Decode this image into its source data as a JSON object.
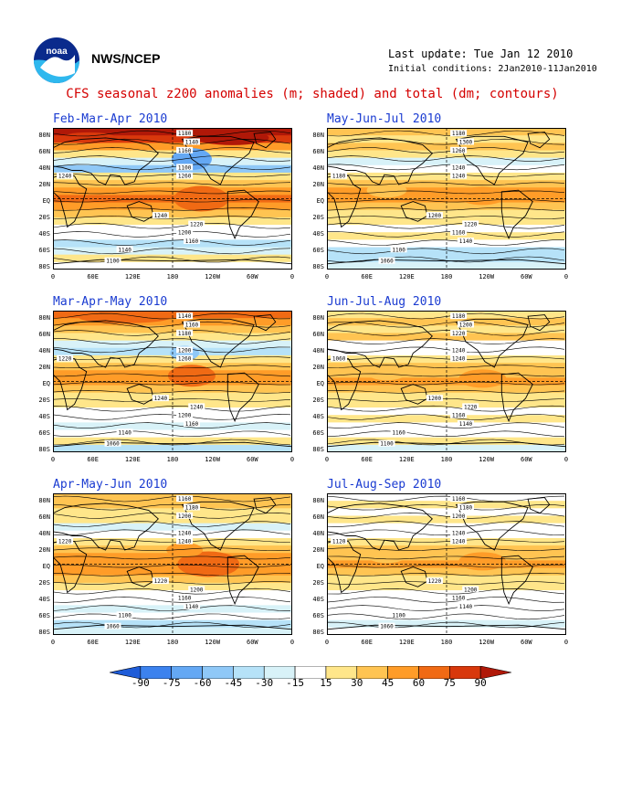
{
  "header": {
    "org": "NWS/NCEP",
    "last_update": "Last update: Tue Jan 12 2010",
    "initial_conditions": "Initial conditions: 2Jan2010-11Jan2010",
    "title": "CFS seasonal z200 anomalies (m; shaded) and total (dm; contours)"
  },
  "axes": {
    "lat_labels": [
      "80N",
      "60N",
      "40N",
      "20N",
      "EQ",
      "20S",
      "40S",
      "60S",
      "80S"
    ],
    "lon_labels": [
      "0",
      "60E",
      "120E",
      "180",
      "120W",
      "60W",
      "0"
    ]
  },
  "panels": [
    {
      "title": "Feb-Mar-Apr 2010",
      "contours": [
        "1180",
        "1140",
        "1160",
        "1100",
        "1260",
        "1240",
        "1220",
        "1200",
        "1160",
        "1140",
        "1100",
        "1240"
      ]
    },
    {
      "title": "May-Jun-Jul 2010",
      "contours": [
        "1180",
        "1300",
        "1260",
        "1240",
        "1240",
        "1200",
        "1220",
        "1160",
        "1140",
        "1100",
        "1060",
        "1180"
      ]
    },
    {
      "title": "Mar-Apr-May 2010",
      "contours": [
        "1140",
        "1160",
        "1180",
        "1200",
        "1260",
        "1240",
        "1240",
        "1200",
        "1160",
        "1140",
        "1060",
        "1220"
      ]
    },
    {
      "title": "Jun-Jul-Aug 2010",
      "contours": [
        "1180",
        "1200",
        "1220",
        "1240",
        "1240",
        "1200",
        "1220",
        "1160",
        "1140",
        "1160",
        "1100",
        "1060"
      ]
    },
    {
      "title": "Apr-May-Jun 2010",
      "contours": [
        "1160",
        "1180",
        "1200",
        "1240",
        "1240",
        "1220",
        "1200",
        "1160",
        "1140",
        "1100",
        "1060",
        "1220"
      ]
    },
    {
      "title": "Jul-Aug-Sep 2010",
      "contours": [
        "1160",
        "1180",
        "1200",
        "1240",
        "1240",
        "1220",
        "1200",
        "1160",
        "1140",
        "1100",
        "1060",
        "1120"
      ]
    }
  ],
  "colorbar": {
    "labels": [
      "-90",
      "-75",
      "-60",
      "-45",
      "-30",
      "-15",
      "15",
      "30",
      "45",
      "60",
      "75",
      "90"
    ],
    "colors": [
      "#1e5cd8",
      "#3c82ee",
      "#64a8f4",
      "#8fc8f7",
      "#b6e2f8",
      "#d8f2f8",
      "#ffffff",
      "#ffe68a",
      "#ffc452",
      "#ff9c28",
      "#f06a14",
      "#d8380c",
      "#b01808"
    ]
  }
}
